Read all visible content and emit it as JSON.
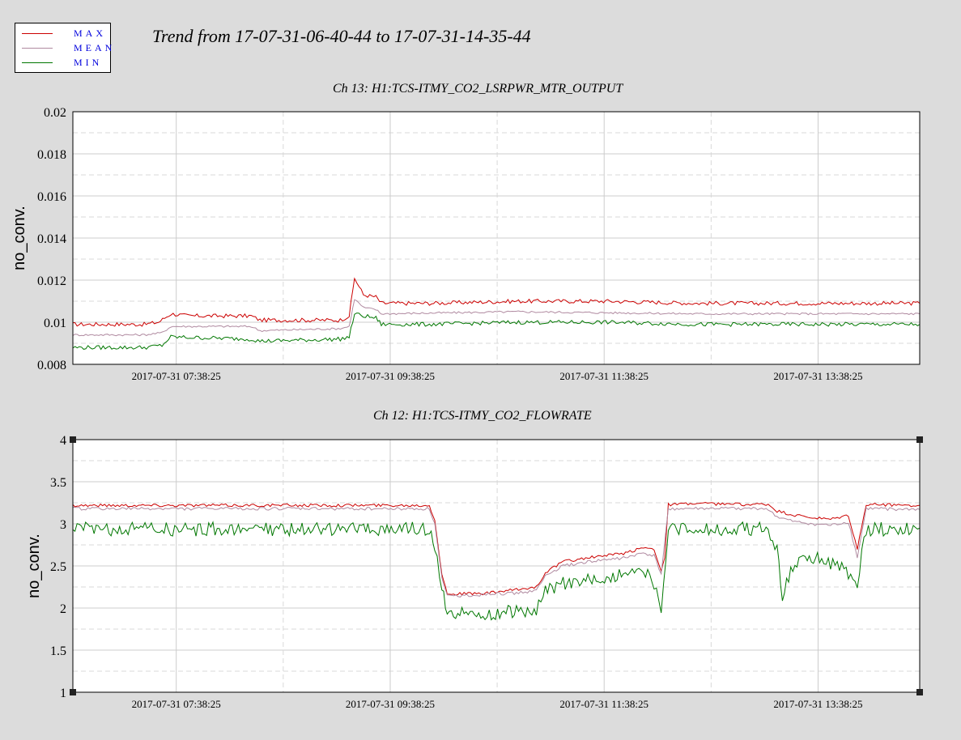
{
  "header": {
    "title": "Trend from 17-07-31-06-40-44 to 17-07-31-14-35-44"
  },
  "legend": {
    "items": [
      {
        "label": "MAX",
        "color": "#cc0000"
      },
      {
        "label": "MEAN",
        "color": "#b08aa0"
      },
      {
        "label": "MIN",
        "color": "#007700"
      }
    ]
  },
  "chart_data": [
    {
      "type": "line",
      "title": "Ch 13: H1:TCS-ITMY_CO2_LSRPWR_MTR_OUTPUT",
      "ylabel": "no_conv.",
      "xlabel": "",
      "x_range_minutes": [
        0,
        475
      ],
      "xticks": [
        {
          "x": 58,
          "label": "2017-07-31 07:38:25"
        },
        {
          "x": 178,
          "label": "2017-07-31 09:38:25"
        },
        {
          "x": 298,
          "label": "2017-07-31 11:38:25"
        },
        {
          "x": 418,
          "label": "2017-07-31 13:38:25"
        }
      ],
      "ylim": [
        0.008,
        0.02
      ],
      "yticks": [
        0.008,
        0.01,
        0.012,
        0.014,
        0.016,
        0.018,
        0.02
      ],
      "ytick_labels": [
        "0.008",
        "0.01",
        "0.012",
        "0.014",
        "0.016",
        "0.018",
        "0.02"
      ],
      "grid": true,
      "series": [
        {
          "name": "MAX",
          "color": "#cc0000",
          "points": [
            [
              0,
              0.0099
            ],
            [
              20,
              0.0099
            ],
            [
              40,
              0.0099
            ],
            [
              48,
              0.01
            ],
            [
              55,
              0.0104
            ],
            [
              65,
              0.0103
            ],
            [
              80,
              0.0103
            ],
            [
              100,
              0.0103
            ],
            [
              105,
              0.0101
            ],
            [
              125,
              0.0101
            ],
            [
              140,
              0.0101
            ],
            [
              150,
              0.0101
            ],
            [
              155,
              0.0103
            ],
            [
              158,
              0.0121
            ],
            [
              163,
              0.0113
            ],
            [
              170,
              0.0112
            ],
            [
              173,
              0.0109
            ],
            [
              200,
              0.0109
            ],
            [
              250,
              0.011
            ],
            [
              300,
              0.011
            ],
            [
              350,
              0.0109
            ],
            [
              400,
              0.0109
            ],
            [
              450,
              0.0109
            ],
            [
              475,
              0.0109
            ]
          ]
        },
        {
          "name": "MEAN",
          "color": "#b08aa0",
          "points": [
            [
              0,
              0.0094
            ],
            [
              40,
              0.0094
            ],
            [
              50,
              0.0095
            ],
            [
              55,
              0.0098
            ],
            [
              100,
              0.0098
            ],
            [
              105,
              0.0096
            ],
            [
              150,
              0.0097
            ],
            [
              155,
              0.0098
            ],
            [
              158,
              0.0111
            ],
            [
              163,
              0.0107
            ],
            [
              170,
              0.0106
            ],
            [
              173,
              0.0104
            ],
            [
              250,
              0.0105
            ],
            [
              350,
              0.0104
            ],
            [
              475,
              0.0104
            ]
          ]
        },
        {
          "name": "MIN",
          "color": "#007700",
          "points": [
            [
              0,
              0.0088
            ],
            [
              40,
              0.0088
            ],
            [
              50,
              0.0089
            ],
            [
              55,
              0.0093
            ],
            [
              100,
              0.0092
            ],
            [
              105,
              0.0091
            ],
            [
              150,
              0.0092
            ],
            [
              155,
              0.0093
            ],
            [
              158,
              0.0104
            ],
            [
              163,
              0.0103
            ],
            [
              170,
              0.0102
            ],
            [
              173,
              0.0099
            ],
            [
              200,
              0.0099
            ],
            [
              250,
              0.01
            ],
            [
              300,
              0.01
            ],
            [
              350,
              0.0099
            ],
            [
              400,
              0.0099
            ],
            [
              475,
              0.0099
            ]
          ]
        }
      ]
    },
    {
      "type": "line",
      "title": "Ch 12: H1:TCS-ITMY_CO2_FLOWRATE",
      "ylabel": "no_conv.",
      "xlabel": "",
      "x_range_minutes": [
        0,
        475
      ],
      "xticks": [
        {
          "x": 58,
          "label": "2017-07-31 07:38:25"
        },
        {
          "x": 178,
          "label": "2017-07-31 09:38:25"
        },
        {
          "x": 298,
          "label": "2017-07-31 11:38:25"
        },
        {
          "x": 418,
          "label": "2017-07-31 13:38:25"
        }
      ],
      "ylim": [
        1,
        4
      ],
      "yticks": [
        1,
        1.5,
        2,
        2.5,
        3,
        3.5,
        4
      ],
      "ytick_labels": [
        "1",
        "1.5",
        "2",
        "2.5",
        "3",
        "3.5",
        "4"
      ],
      "grid": true,
      "series": [
        {
          "name": "MAX",
          "color": "#cc0000",
          "points": [
            [
              0,
              3.22
            ],
            [
              50,
              3.22
            ],
            [
              100,
              3.22
            ],
            [
              150,
              3.22
            ],
            [
              200,
              3.22
            ],
            [
              203,
              3.05
            ],
            [
              207,
              2.4
            ],
            [
              210,
              2.17
            ],
            [
              230,
              2.17
            ],
            [
              250,
              2.22
            ],
            [
              260,
              2.25
            ],
            [
              265,
              2.42
            ],
            [
              275,
              2.55
            ],
            [
              290,
              2.6
            ],
            [
              310,
              2.65
            ],
            [
              320,
              2.72
            ],
            [
              326,
              2.7
            ],
            [
              330,
              2.45
            ],
            [
              332,
              2.6
            ],
            [
              334,
              3.23
            ],
            [
              350,
              3.24
            ],
            [
              380,
              3.23
            ],
            [
              390,
              3.23
            ],
            [
              395,
              3.15
            ],
            [
              405,
              3.1
            ],
            [
              415,
              3.07
            ],
            [
              425,
              3.05
            ],
            [
              435,
              3.1
            ],
            [
              440,
              2.7
            ],
            [
              445,
              3.23
            ],
            [
              475,
              3.22
            ]
          ]
        },
        {
          "name": "MEAN",
          "color": "#b08aa0",
          "points": [
            [
              0,
              3.18
            ],
            [
              100,
              3.18
            ],
            [
              200,
              3.18
            ],
            [
              203,
              3.0
            ],
            [
              207,
              2.35
            ],
            [
              210,
              2.14
            ],
            [
              250,
              2.18
            ],
            [
              260,
              2.21
            ],
            [
              265,
              2.38
            ],
            [
              275,
              2.5
            ],
            [
              290,
              2.55
            ],
            [
              310,
              2.6
            ],
            [
              320,
              2.65
            ],
            [
              326,
              2.62
            ],
            [
              330,
              2.4
            ],
            [
              334,
              3.18
            ],
            [
              390,
              3.18
            ],
            [
              395,
              3.08
            ],
            [
              405,
              3.02
            ],
            [
              415,
              3.0
            ],
            [
              425,
              2.98
            ],
            [
              435,
              3.02
            ],
            [
              440,
              2.6
            ],
            [
              445,
              3.18
            ],
            [
              475,
              3.17
            ]
          ]
        },
        {
          "name": "MIN",
          "color": "#007700",
          "points": [
            [
              0,
              2.95
            ],
            [
              50,
              2.95
            ],
            [
              100,
              2.95
            ],
            [
              150,
              2.95
            ],
            [
              200,
              2.95
            ],
            [
              203,
              2.75
            ],
            [
              207,
              2.3
            ],
            [
              210,
              1.97
            ],
            [
              230,
              1.95
            ],
            [
              250,
              1.97
            ],
            [
              260,
              2.0
            ],
            [
              265,
              2.2
            ],
            [
              275,
              2.3
            ],
            [
              290,
              2.35
            ],
            [
              310,
              2.4
            ],
            [
              320,
              2.45
            ],
            [
              326,
              2.3
            ],
            [
              330,
              1.98
            ],
            [
              334,
              2.95
            ],
            [
              390,
              2.95
            ],
            [
              395,
              2.7
            ],
            [
              398,
              2.18
            ],
            [
              405,
              2.55
            ],
            [
              420,
              2.6
            ],
            [
              430,
              2.5
            ],
            [
              440,
              2.3
            ],
            [
              445,
              2.95
            ],
            [
              475,
              2.95
            ]
          ]
        }
      ]
    }
  ]
}
